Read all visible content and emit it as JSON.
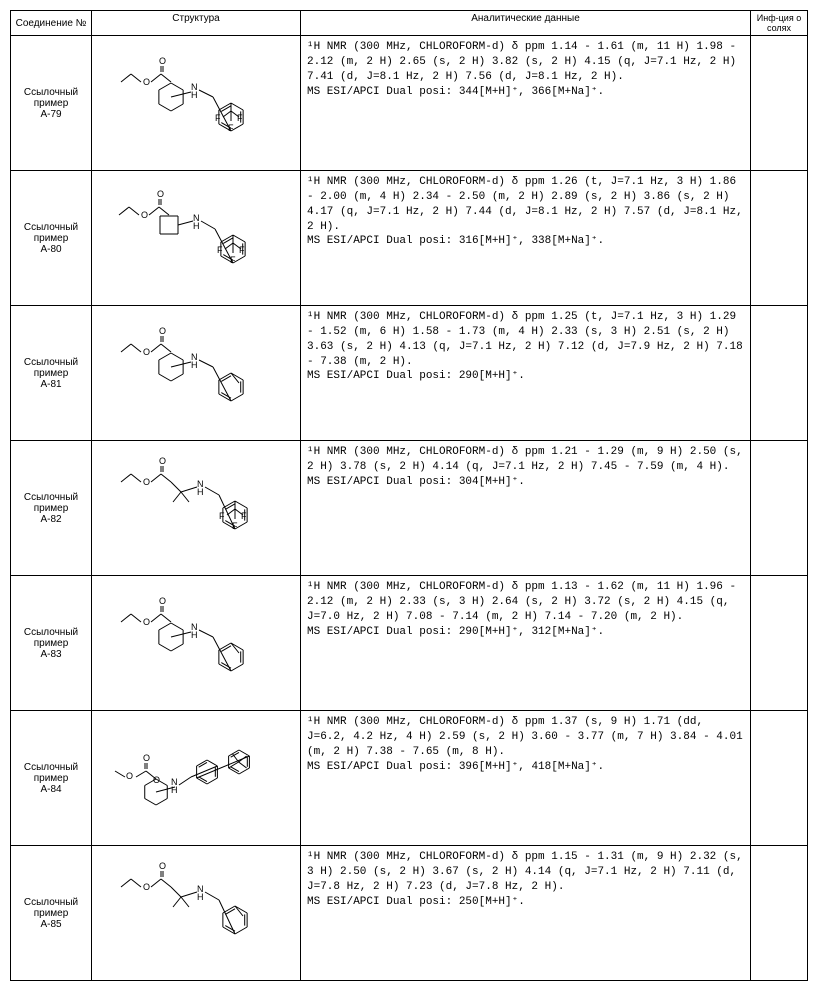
{
  "headers": {
    "compound": "Соединение №",
    "structure": "Структура",
    "data": "Аналитические данные",
    "salt": "Инф-ция о солях"
  },
  "rows": [
    {
      "compound_label": "Ссылочный пример",
      "compound_id": "A-79",
      "analytical": "¹H NMR (300 MHz, CHLOROFORM-d) δ ppm 1.14 - 1.61 (m, 11 H) 1.98 - 2.12 (m, 2 H) 2.65 (s, 2 H) 3.82 (s, 2 H) 4.15 (q, J=7.1 Hz, 2 H) 7.41 (d, J=8.1 Hz, 2 H) 7.56 (d, J=8.1 Hz, 2 H).\nMS ESI/APCI Dual posi: 344[M+H]⁺, 366[M+Na]⁺.",
      "salt": "",
      "structure_type": "cyclohexyl-CF3-benzyl"
    },
    {
      "compound_label": "Ссылочный пример",
      "compound_id": "A-80",
      "analytical": "¹H NMR (300 MHz, CHLOROFORM-d) δ ppm 1.26 (t, J=7.1 Hz, 3 H) 1.86 - 2.00 (m, 4 H) 2.34 - 2.50 (m, 2 H) 2.89 (s, 2 H) 3.86 (s, 2 H) 4.17 (q, J=7.1 Hz, 2 H) 7.44 (d, J=8.1 Hz, 2 H) 7.57 (d, J=8.1 Hz, 2 H).\nMS ESI/APCI Dual posi: 316[M+H]⁺, 338[M+Na]⁺.",
      "salt": "",
      "structure_type": "cyclobutyl-CF3-benzyl"
    },
    {
      "compound_label": "Ссылочный пример",
      "compound_id": "A-81",
      "analytical": "¹H NMR (300 MHz, CHLOROFORM-d) δ ppm 1.25 (t, J=7.1 Hz, 3 H) 1.29 - 1.52 (m, 6 H) 1.58 - 1.73 (m, 4 H) 2.33 (s, 3 H) 2.51 (s, 2 H) 3.63 (s, 2 H) 4.13 (q, J=7.1 Hz, 2 H) 7.12 (d, J=7.9 Hz, 2 H) 7.18 - 7.38 (m, 2 H).\nMS ESI/APCI Dual posi: 290[M+H]⁺.",
      "salt": "",
      "structure_type": "cyclohexyl-methyl-benzyl"
    },
    {
      "compound_label": "Ссылочный пример",
      "compound_id": "A-82",
      "analytical": "¹H NMR (300 MHz, CHLOROFORM-d) δ ppm 1.21 - 1.29 (m, 9 H) 2.50 (s, 2 H) 3.78 (s, 2 H) 4.14 (q, J=7.1 Hz, 2 H) 7.45 - 7.59 (m, 4 H).\nMS ESI/APCI Dual posi: 304[M+H]⁺.",
      "salt": "",
      "structure_type": "dimethyl-CF3-benzyl"
    },
    {
      "compound_label": "Ссылочный пример",
      "compound_id": "A-83",
      "analytical": "¹H NMR (300 MHz, CHLOROFORM-d) δ ppm 1.13 - 1.62 (m, 11 H) 1.96 - 2.12 (m, 2 H) 2.33 (s, 3 H) 2.64 (s, 2 H) 3.72 (s, 2 H) 4.15 (q, J=7.0 Hz, 2 H) 7.08 - 7.14 (m, 2 H) 7.14 - 7.20 (m, 2 H).\nMS ESI/APCI Dual posi: 290[M+H]⁺, 312[M+Na]⁺.",
      "salt": "",
      "structure_type": "cyclohexyl-methyl-benzyl-2"
    },
    {
      "compound_label": "Ссылочный пример",
      "compound_id": "A-84",
      "analytical": "¹H NMR (300 MHz, CHLOROFORM-d) δ ppm 1.37 (s, 9 H) 1.71 (dd, J=6.2, 4.2 Hz, 4 H) 2.59 (s, 2 H) 3.60 - 3.77 (m, 7 H) 3.84 - 4.01 (m, 2 H) 7.38 - 7.65 (m, 8 H).\nMS ESI/APCI Dual posi: 396[M+H]⁺, 418[M+Na]⁺.",
      "salt": "",
      "structure_type": "tetrahydropyran-biphenyl-tbu"
    },
    {
      "compound_label": "Ссылочный пример",
      "compound_id": "A-85",
      "analytical": "¹H NMR (300 MHz, CHLOROFORM-d) δ ppm 1.15 - 1.31 (m, 9 H) 2.32 (s, 3 H) 2.50 (s, 2 H) 3.67 (s, 2 H) 4.14 (q, J=7.1 Hz, 2 H) 7.11 (d, J=7.8 Hz, 2 H) 7.23 (d, J=7.8 Hz, 2 H).\nMS ESI/APCI Dual posi: 250[M+H]⁺.",
      "salt": "",
      "structure_type": "dimethyl-methyl-benzyl"
    }
  ],
  "colors": {
    "border": "#000000",
    "background": "#ffffff",
    "text": "#000000"
  }
}
